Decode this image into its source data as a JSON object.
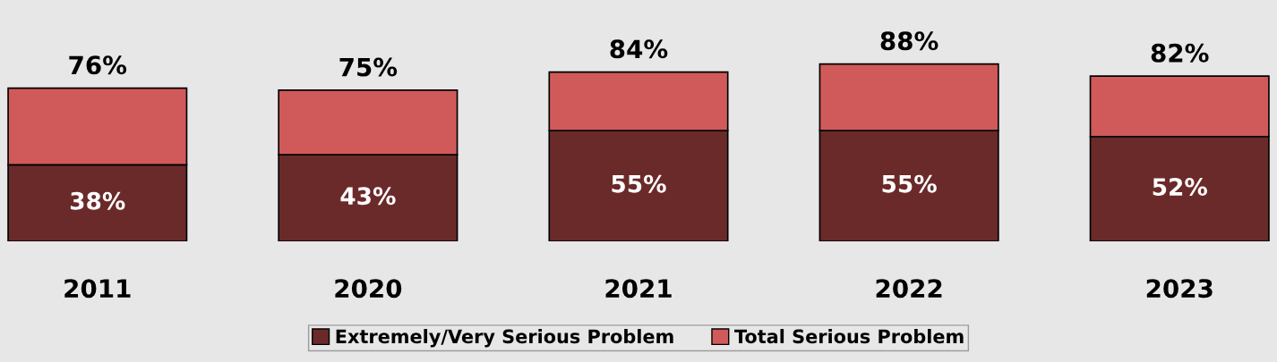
{
  "chart_data": {
    "type": "bar",
    "stacked": true,
    "categories": [
      "2011",
      "2020",
      "2021",
      "2022",
      "2023"
    ],
    "series": [
      {
        "name": "Extremely/Very Serious Problem",
        "color": "#6b2a2a",
        "values": [
          38,
          43,
          55,
          55,
          52
        ],
        "value_labels": [
          "38%",
          "43%",
          "55%",
          "55%",
          "52%"
        ]
      },
      {
        "name": "Total Serious Problem",
        "color": "#d05a5a",
        "values": [
          38,
          32,
          29,
          33,
          30
        ]
      }
    ],
    "totals": [
      "76%",
      "75%",
      "84%",
      "88%",
      "82%"
    ],
    "legend": "bottom",
    "grid": false
  }
}
